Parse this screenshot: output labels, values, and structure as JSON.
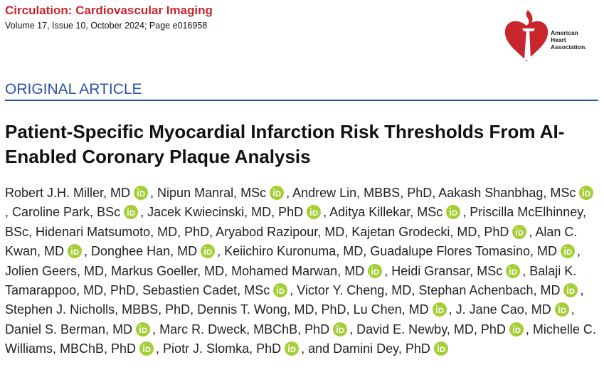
{
  "header": {
    "journal": "Circulation: Cardiovascular Imaging",
    "citation": "Volume 17, Issue 10, October 2024; Page e016958"
  },
  "logo": {
    "lines": [
      "American",
      "Heart",
      "Association."
    ]
  },
  "article_type": "ORIGINAL ARTICLE",
  "title": "Patient-Specific Myocardial Infarction Risk Thresholds From AI-Enabled Coronary Plaque Analysis",
  "authors": [
    {
      "name": "Robert J.H. Miller, MD",
      "orcid": true,
      "separator": ", "
    },
    {
      "name": "Nipun Manral, MSc",
      "orcid": true,
      "separator": ", "
    },
    {
      "name": "Andrew Lin, MBBS, PhD",
      "orcid": false,
      "separator": ", "
    },
    {
      "name": "Aakash Shanbhag, MSc",
      "orcid": true,
      "separator": ", "
    },
    {
      "name": "Caroline Park, BSc",
      "orcid": true,
      "separator": ", "
    },
    {
      "name": "Jacek Kwiecinski, MD, PhD",
      "orcid": true,
      "separator": ", "
    },
    {
      "name": "Aditya Killekar, MSc",
      "orcid": true,
      "separator": ", "
    },
    {
      "name": "Priscilla McElhinney, BSc",
      "orcid": false,
      "separator": ", "
    },
    {
      "name": "Hidenari Matsumoto, MD, PhD",
      "orcid": false,
      "separator": ", "
    },
    {
      "name": "Aryabod Razipour, MD",
      "orcid": false,
      "separator": ", "
    },
    {
      "name": "Kajetan Grodecki, MD, PhD",
      "orcid": true,
      "separator": ", "
    },
    {
      "name": "Alan C. Kwan, MD",
      "orcid": true,
      "separator": ", "
    },
    {
      "name": "Donghee Han, MD",
      "orcid": true,
      "separator": ", "
    },
    {
      "name": "Keiichiro Kuronuma, MD",
      "orcid": false,
      "separator": ", "
    },
    {
      "name": "Guadalupe Flores Tomasino, MD",
      "orcid": true,
      "separator": ", "
    },
    {
      "name": "Jolien Geers, MD",
      "orcid": false,
      "separator": ", "
    },
    {
      "name": "Markus Goeller, MD",
      "orcid": false,
      "separator": ", "
    },
    {
      "name": "Mohamed Marwan, MD",
      "orcid": true,
      "separator": ", "
    },
    {
      "name": "Heidi Gransar, MSc",
      "orcid": true,
      "separator": ", "
    },
    {
      "name": "Balaji K. Tamarappoo, MD, PhD",
      "orcid": false,
      "separator": ", "
    },
    {
      "name": "Sebastien Cadet, MSc",
      "orcid": true,
      "separator": ", "
    },
    {
      "name": "Victor Y. Cheng, MD",
      "orcid": false,
      "separator": ", "
    },
    {
      "name": "Stephan Achenbach, MD",
      "orcid": true,
      "separator": ", "
    },
    {
      "name": "Stephen J. Nicholls, MBBS, PhD",
      "orcid": false,
      "separator": ", "
    },
    {
      "name": "Dennis T. Wong, MD, PhD",
      "orcid": false,
      "separator": ", "
    },
    {
      "name": "Lu Chen, MD",
      "orcid": true,
      "separator": ", "
    },
    {
      "name": "J. Jane Cao, MD",
      "orcid": true,
      "separator": ", "
    },
    {
      "name": "Daniel S. Berman, MD",
      "orcid": true,
      "separator": ", "
    },
    {
      "name": "Marc R. Dweck, MBChB, PhD",
      "orcid": true,
      "separator": ", "
    },
    {
      "name": "David E. Newby, MD, PhD",
      "orcid": true,
      "separator": ", "
    },
    {
      "name": "Michelle C. Williams, MBChB, PhD",
      "orcid": true,
      "separator": ", "
    },
    {
      "name": "Piotr J. Slomka, PhD",
      "orcid": true,
      "separator": ", and "
    },
    {
      "name": "Damini Dey, PhD",
      "orcid": true
    }
  ]
}
